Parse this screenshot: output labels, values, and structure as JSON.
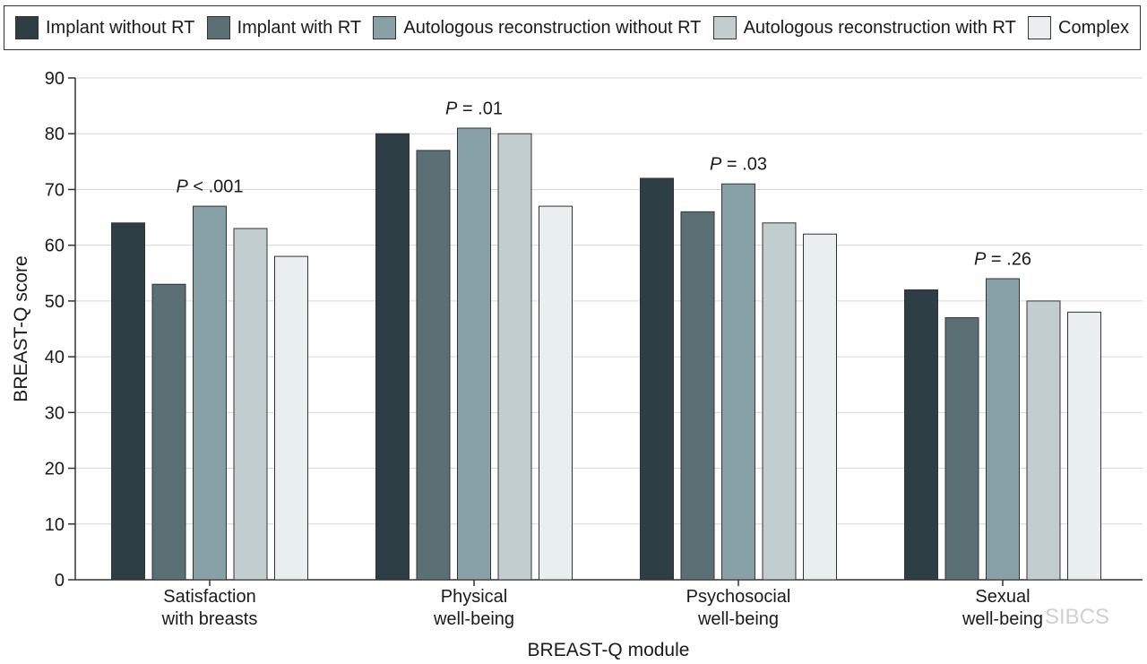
{
  "chart_data": {
    "type": "bar",
    "title": "",
    "xlabel": "BREAST-Q module",
    "ylabel": "BREAST-Q score",
    "ylim": [
      0,
      90
    ],
    "yticks": [
      0,
      10,
      20,
      30,
      40,
      50,
      60,
      70,
      80,
      90
    ],
    "grid": true,
    "legend_position": "top",
    "categories": [
      [
        "Satisfaction",
        "with breasts"
      ],
      [
        "Physical",
        "well-being"
      ],
      [
        "Psychosocial",
        "well-being"
      ],
      [
        "Sexual",
        "well-being"
      ]
    ],
    "series": [
      {
        "name": "Implant without RT",
        "color": "#2d3e45",
        "values": [
          64,
          80,
          72,
          52
        ]
      },
      {
        "name": "Implant with RT",
        "color": "#5b7075",
        "values": [
          53,
          77,
          66,
          47
        ]
      },
      {
        "name": "Autologous reconstruction without RT",
        "color": "#87a1a6",
        "values": [
          67,
          81,
          71,
          54
        ]
      },
      {
        "name": "Autologous reconstruction with RT",
        "color": "#c1cdcf",
        "values": [
          63,
          80,
          64,
          50
        ]
      },
      {
        "name": "Complex",
        "color": "#e9eeee",
        "values": [
          58,
          67,
          62,
          48
        ]
      }
    ],
    "annotations": [
      {
        "category_index": 0,
        "italic": "P",
        "text": " < .001",
        "y_value": 69.5
      },
      {
        "category_index": 1,
        "italic": "P",
        "text": " = .01",
        "y_value": 83.5
      },
      {
        "category_index": 2,
        "italic": "P",
        "text": " = .03",
        "y_value": 73.5
      },
      {
        "category_index": 3,
        "italic": "P",
        "text": " = .26",
        "y_value": 56.5
      }
    ]
  },
  "watermark": {
    "text": "SIBCS"
  }
}
